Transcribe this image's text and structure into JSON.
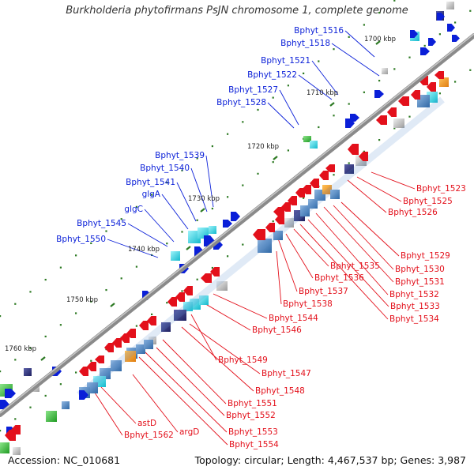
{
  "title": "Burkholderia phytofirmans PsJN chromosome 1, complete genome",
  "footer": {
    "accession": "Accession: NC_010681",
    "summary": "Topology: circular; Length: 4,467,537 bp; Genes: 3,987"
  },
  "scale_labels": [
    "1700 kbp",
    "1710 kbp",
    "1720 kbp",
    "1730 kbp",
    "1740 kbp",
    "1750 kbp",
    "1760 kbp"
  ],
  "labels_outer": [
    "Bphyt_1516",
    "Bphyt_1518",
    "Bphyt_1521",
    "Bphyt_1522",
    "Bphyt_1527",
    "Bphyt_1528",
    "Bphyt_1539",
    "Bphyt_1540",
    "Bphyt_1541",
    "glgA",
    "glgC",
    "Bphyt_1545",
    "Bphyt_1550"
  ],
  "labels_inner": [
    "Bphyt_1523",
    "Bphyt_1525",
    "Bphyt_1526",
    "Bphyt_1529",
    "Bphyt_1530",
    "Bphyt_1531",
    "Bphyt_1532",
    "Bphyt_1533",
    "Bphyt_1534",
    "Bphyt_1535",
    "Bphyt_1536",
    "Bphyt_1537",
    "Bphyt_1538",
    "Bphyt_1544",
    "Bphyt_1546",
    "Bphyt_1549",
    "Bphyt_1547",
    "Bphyt_1548",
    "Bphyt_1551",
    "Bphyt_1552",
    "Bphyt_1553",
    "Bphyt_1554",
    "astD",
    "argD",
    "Bphyt_1562"
  ],
  "colors": {
    "backbone": "#8a8a8a",
    "forward_cds": "#0a1fd8",
    "reverse_cds": "#e3101b",
    "outer_label": "#0a1fd8",
    "inner_label": "#e3101b",
    "tick": "#2d7a23",
    "cog_teal": "#2fd6e6",
    "cog_steelblue": "#4f88c4",
    "cog_navy": "#2b2f7a",
    "cog_grey": "#b8b8b8",
    "cog_orange": "#f39a1f",
    "cog_green": "#3dba3a"
  }
}
